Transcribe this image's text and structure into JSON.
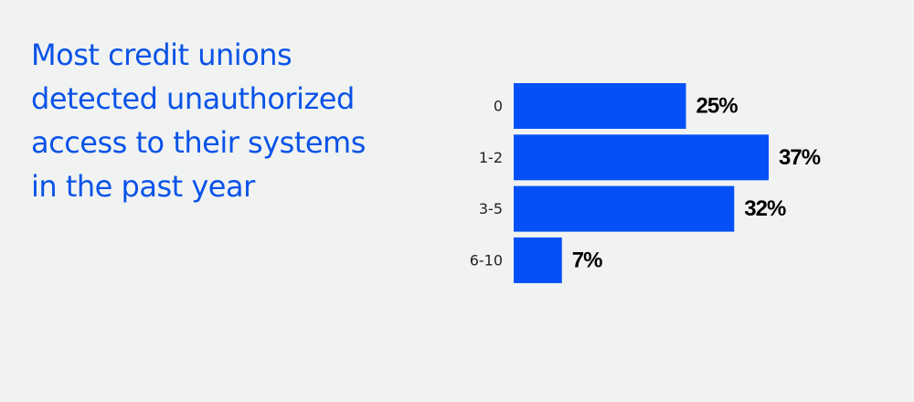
{
  "title_lines": [
    "Most credit unions",
    "detected unauthorized",
    "access to their systems",
    "in the past year"
  ],
  "colors": {
    "background": "#f1f3f2",
    "accent": "#0a53e8",
    "bar": "#0651f7",
    "value_text": "#000000",
    "category_text": "#222222"
  },
  "chart_data": {
    "type": "bar",
    "orientation": "horizontal",
    "title": "Most credit unions detected unauthorized access to their systems in the past year",
    "categories": [
      "0",
      "1-2",
      "3-5",
      "6-10"
    ],
    "values": [
      25,
      37,
      32,
      7
    ],
    "value_labels": [
      "25%",
      "37%",
      "32%",
      "7%"
    ],
    "unit": "%",
    "xlim": [
      0,
      37
    ],
    "grid": false,
    "legend": "none",
    "xlabel": "",
    "ylabel": ""
  }
}
